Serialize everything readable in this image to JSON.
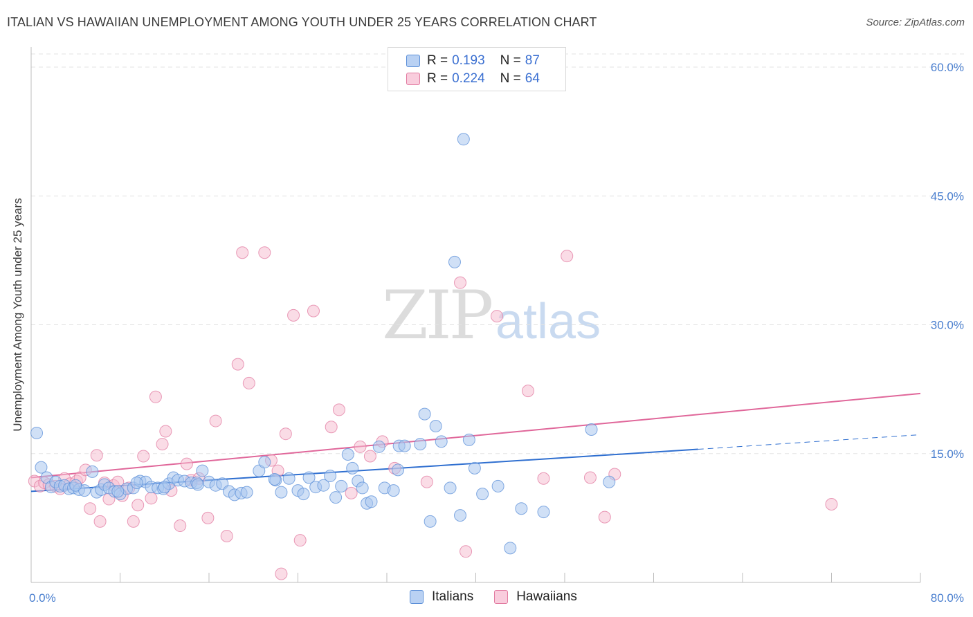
{
  "title": "ITALIAN VS HAWAIIAN UNEMPLOYMENT AMONG YOUTH UNDER 25 YEARS CORRELATION CHART",
  "source": "Source: ZipAtlas.com",
  "watermark": {
    "zip": "ZIP",
    "atlas": "atlas"
  },
  "colors": {
    "italians": "#5b8fd8",
    "italians_fill": "#a9c6ee",
    "hawaiians": "#e27aa0",
    "hawaiians_fill": "#f6bfd2",
    "italians_line": "#2f6fd0",
    "hawaiians_line": "#e0679a",
    "tick": "#4a7fcf"
  },
  "legend": {
    "rows": [
      {
        "r_label": "R =",
        "r_value": "0.193",
        "n_label": "N =",
        "n_value": "87"
      },
      {
        "r_label": "R =",
        "r_value": "0.224",
        "n_label": "N =",
        "n_value": "64"
      }
    ]
  },
  "bottom_legend": {
    "italians": "Italians",
    "hawaiians": "Hawaiians"
  },
  "chart_data": {
    "type": "scatter",
    "title": "ITALIAN VS HAWAIIAN UNEMPLOYMENT AMONG YOUTH UNDER 25 YEARS CORRELATION CHART",
    "xlabel": "",
    "ylabel": "Unemployment Among Youth under 25 years",
    "xlim": [
      0,
      80
    ],
    "ylim": [
      0,
      60
    ],
    "x_tick_labels": [
      "0.0%",
      "80.0%"
    ],
    "y_ticks": [
      15,
      30,
      45,
      60
    ],
    "y_tick_labels": [
      "15.0%",
      "30.0%",
      "45.0%",
      "60.0%"
    ],
    "grid": true,
    "legend_position": "top-center",
    "series": [
      {
        "name": "Italians",
        "r": 0.193,
        "n": 87,
        "trend": {
          "x0": 0,
          "y0": 10.6,
          "x1": 60,
          "y1": 15.5,
          "dashed_to_x": 80,
          "dashed_to_y": 17.2
        },
        "points": [
          [
            0.5,
            17.4
          ],
          [
            0.9,
            13.4
          ],
          [
            1.4,
            12.2
          ],
          [
            1.8,
            11.1
          ],
          [
            2.2,
            11.7
          ],
          [
            2.6,
            11.2
          ],
          [
            3.0,
            11.3
          ],
          [
            3.4,
            10.9
          ],
          [
            3.8,
            11.0
          ],
          [
            4.3,
            10.8
          ],
          [
            4.8,
            10.7
          ],
          [
            5.5,
            12.9
          ],
          [
            5.9,
            10.5
          ],
          [
            6.3,
            10.8
          ],
          [
            6.6,
            11.4
          ],
          [
            7.0,
            11.0
          ],
          [
            7.5,
            10.6
          ],
          [
            8.0,
            10.3
          ],
          [
            8.6,
            10.9
          ],
          [
            9.2,
            11.0
          ],
          [
            9.8,
            11.8
          ],
          [
            10.3,
            11.7
          ],
          [
            10.8,
            11.1
          ],
          [
            11.4,
            11.0
          ],
          [
            11.9,
            10.9
          ],
          [
            12.4,
            11.5
          ],
          [
            12.8,
            12.2
          ],
          [
            13.2,
            11.9
          ],
          [
            13.8,
            11.8
          ],
          [
            14.4,
            11.6
          ],
          [
            14.9,
            11.6
          ],
          [
            15.4,
            13.0
          ],
          [
            16.0,
            11.7
          ],
          [
            16.6,
            11.3
          ],
          [
            17.2,
            11.5
          ],
          [
            17.8,
            10.6
          ],
          [
            18.3,
            10.2
          ],
          [
            18.9,
            10.4
          ],
          [
            19.4,
            10.5
          ],
          [
            20.5,
            13.0
          ],
          [
            21.0,
            14.0
          ],
          [
            22.0,
            11.9
          ],
          [
            22.5,
            10.5
          ],
          [
            23.2,
            12.1
          ],
          [
            24.0,
            10.7
          ],
          [
            24.5,
            10.3
          ],
          [
            25.0,
            12.2
          ],
          [
            25.6,
            11.1
          ],
          [
            26.3,
            11.3
          ],
          [
            26.9,
            12.4
          ],
          [
            27.4,
            9.9
          ],
          [
            27.9,
            11.2
          ],
          [
            28.5,
            14.9
          ],
          [
            28.9,
            13.3
          ],
          [
            29.4,
            11.8
          ],
          [
            29.8,
            11.0
          ],
          [
            30.2,
            9.2
          ],
          [
            30.6,
            9.4
          ],
          [
            31.3,
            15.8
          ],
          [
            31.8,
            11.0
          ],
          [
            32.6,
            10.7
          ],
          [
            33.1,
            15.9
          ],
          [
            33.6,
            15.9
          ],
          [
            35.0,
            16.1
          ],
          [
            35.4,
            19.6
          ],
          [
            35.9,
            7.1
          ],
          [
            36.4,
            18.2
          ],
          [
            36.9,
            16.4
          ],
          [
            37.7,
            11.0
          ],
          [
            38.1,
            37.3
          ],
          [
            38.6,
            7.8
          ],
          [
            38.9,
            51.6
          ],
          [
            39.4,
            16.6
          ],
          [
            39.9,
            13.3
          ],
          [
            40.6,
            10.3
          ],
          [
            42.0,
            11.2
          ],
          [
            43.1,
            4.0
          ],
          [
            44.1,
            8.6
          ],
          [
            46.1,
            8.2
          ],
          [
            50.4,
            17.8
          ],
          [
            52.0,
            11.7
          ],
          [
            12.0,
            11.1
          ],
          [
            9.5,
            11.6
          ],
          [
            15.0,
            11.4
          ],
          [
            7.8,
            10.6
          ],
          [
            33.0,
            13.1
          ],
          [
            21.9,
            12.0
          ],
          [
            4.0,
            11.3
          ]
        ]
      },
      {
        "name": "Hawaiians",
        "r": 0.224,
        "n": 64,
        "trend": {
          "x0": 0,
          "y0": 12.2,
          "x1": 80,
          "y1": 22.0
        },
        "points": [
          [
            0.3,
            11.8
          ],
          [
            0.8,
            11.2
          ],
          [
            1.2,
            11.6
          ],
          [
            1.6,
            11.4
          ],
          [
            2.2,
            11.2
          ],
          [
            2.6,
            10.9
          ],
          [
            3.0,
            12.1
          ],
          [
            3.5,
            11.5
          ],
          [
            4.1,
            11.8
          ],
          [
            4.4,
            12.2
          ],
          [
            4.9,
            13.1
          ],
          [
            5.3,
            8.6
          ],
          [
            5.9,
            14.8
          ],
          [
            6.2,
            7.1
          ],
          [
            6.6,
            11.6
          ],
          [
            7.0,
            9.7
          ],
          [
            7.4,
            11.3
          ],
          [
            7.8,
            11.7
          ],
          [
            8.2,
            10.1
          ],
          [
            8.8,
            11.0
          ],
          [
            9.2,
            7.1
          ],
          [
            9.6,
            9.0
          ],
          [
            10.1,
            14.7
          ],
          [
            10.8,
            9.8
          ],
          [
            11.2,
            21.6
          ],
          [
            11.8,
            16.1
          ],
          [
            12.1,
            17.6
          ],
          [
            12.6,
            10.7
          ],
          [
            13.4,
            6.6
          ],
          [
            14.0,
            13.8
          ],
          [
            14.4,
            11.9
          ],
          [
            15.1,
            12.1
          ],
          [
            15.9,
            7.5
          ],
          [
            16.6,
            18.8
          ],
          [
            17.6,
            5.4
          ],
          [
            18.6,
            25.4
          ],
          [
            19.0,
            38.4
          ],
          [
            19.6,
            23.2
          ],
          [
            21.0,
            38.4
          ],
          [
            21.6,
            14.2
          ],
          [
            22.2,
            13.0
          ],
          [
            22.9,
            17.3
          ],
          [
            23.6,
            31.1
          ],
          [
            24.2,
            4.9
          ],
          [
            25.4,
            31.6
          ],
          [
            27.0,
            18.1
          ],
          [
            27.7,
            20.1
          ],
          [
            28.8,
            10.4
          ],
          [
            29.6,
            15.8
          ],
          [
            30.5,
            14.7
          ],
          [
            31.6,
            16.4
          ],
          [
            32.7,
            13.3
          ],
          [
            35.6,
            11.7
          ],
          [
            38.6,
            34.9
          ],
          [
            39.1,
            3.6
          ],
          [
            41.9,
            31.0
          ],
          [
            44.7,
            22.3
          ],
          [
            46.1,
            12.1
          ],
          [
            48.2,
            38.0
          ],
          [
            50.3,
            12.2
          ],
          [
            51.6,
            7.6
          ],
          [
            52.5,
            12.6
          ],
          [
            72.0,
            9.1
          ],
          [
            22.5,
            1.0
          ]
        ]
      }
    ]
  }
}
